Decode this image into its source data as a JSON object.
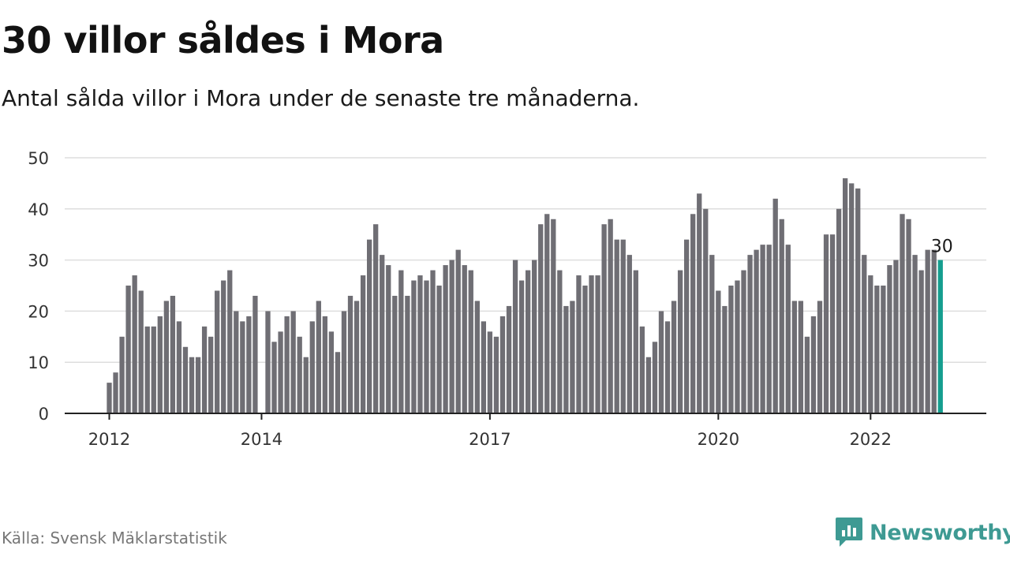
{
  "header": {
    "title": "30 villor såldes i Mora",
    "subtitle": "Antal sålda villor i Mora under de senaste tre månaderna."
  },
  "footer": {
    "source": "Källa: Svensk Mäklarstatistik",
    "brand": "Newsworthy",
    "brand_icon": "newsworthy-logo-icon"
  },
  "colors": {
    "bar": "#6f6e74",
    "highlight": "#159e8f",
    "grid": "#dedede",
    "axis": "#222222",
    "brand": "#3e9a93"
  },
  "chart_data": {
    "type": "bar",
    "title": "30 villor såldes i Mora",
    "subtitle": "Antal sålda villor i Mora under de senaste tre månaderna.",
    "xlabel": "",
    "ylabel": "",
    "ylim": [
      0,
      50
    ],
    "y_ticks": [
      0,
      10,
      20,
      30,
      40,
      50
    ],
    "x_ticks": [
      {
        "label": "2012",
        "index": 0
      },
      {
        "label": "2014",
        "index": 24
      },
      {
        "label": "2017",
        "index": 60
      },
      {
        "label": "2020",
        "index": 96
      },
      {
        "label": "2022",
        "index": 120
      }
    ],
    "grid": true,
    "legend": "none",
    "annotation": {
      "text": "30",
      "index": 131
    },
    "highlight_index": 131,
    "values": [
      6,
      8,
      15,
      25,
      27,
      24,
      17,
      17,
      19,
      22,
      23,
      18,
      13,
      11,
      11,
      17,
      15,
      24,
      26,
      28,
      20,
      18,
      19,
      23,
      0,
      20,
      14,
      16,
      19,
      20,
      15,
      11,
      18,
      22,
      19,
      16,
      12,
      20,
      23,
      22,
      27,
      34,
      37,
      31,
      29,
      23,
      28,
      23,
      26,
      27,
      26,
      28,
      25,
      29,
      30,
      32,
      29,
      28,
      22,
      18,
      16,
      15,
      19,
      21,
      30,
      26,
      28,
      30,
      37,
      39,
      38,
      28,
      21,
      22,
      27,
      25,
      27,
      27,
      37,
      38,
      34,
      34,
      31,
      28,
      17,
      11,
      14,
      20,
      18,
      22,
      28,
      34,
      39,
      43,
      40,
      31,
      24,
      21,
      25,
      26,
      28,
      31,
      32,
      33,
      33,
      42,
      38,
      33,
      22,
      22,
      15,
      19,
      22,
      35,
      35,
      40,
      46,
      45,
      44,
      31,
      27,
      25,
      25,
      29,
      30,
      39,
      38,
      31,
      28,
      32,
      32,
      30
    ]
  }
}
